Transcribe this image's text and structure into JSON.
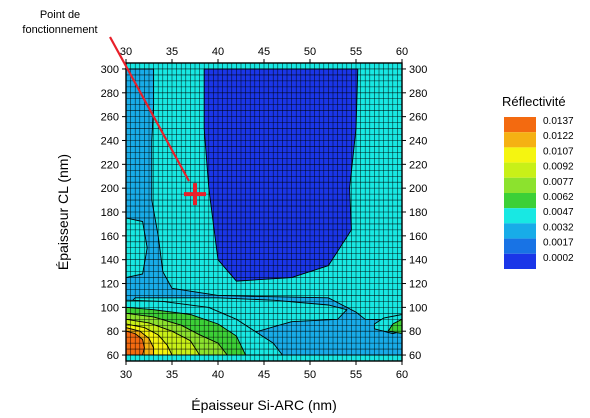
{
  "chart_data": {
    "type": "heatmap",
    "subtype": "filled-contour",
    "xlabel": "Épaisseur Si-ARC (nm)",
    "ylabel": "Épaisseur CL (nm)",
    "xlim": [
      30,
      60
    ],
    "ylim": [
      55,
      305
    ],
    "x_ticks": [
      30,
      35,
      40,
      45,
      50,
      55,
      60
    ],
    "y_ticks": [
      60,
      80,
      100,
      120,
      140,
      160,
      180,
      200,
      220,
      240,
      260,
      280,
      300
    ],
    "grid": "mesh",
    "mesh_x_step": 0.5,
    "mesh_y_step": 5,
    "legend": {
      "title": "Réflectivité",
      "position": "right",
      "levels": [
        0.0137,
        0.0122,
        0.0107,
        0.0092,
        0.0077,
        0.0062,
        0.0047,
        0.0032,
        0.0017,
        0.0002
      ],
      "colors": [
        "#f36a10",
        "#f5b113",
        "#f5f510",
        "#c8f018",
        "#8ce22e",
        "#3cd037",
        "#18e8e3",
        "#18ace8",
        "#1873e5",
        "#1a36e8"
      ]
    },
    "annotation": {
      "text_line1": "Point de",
      "text_line2": "fonctionnement",
      "marker": "+",
      "marker_color": "#e8202a",
      "x": 37.5,
      "y": 195
    },
    "regions": [
      {
        "level": 0.0002,
        "polygon": [
          [
            38.5,
            300
          ],
          [
            55.2,
            300
          ],
          [
            55,
            250
          ],
          [
            54.3,
            200
          ],
          [
            54.5,
            165
          ],
          [
            52,
            135
          ],
          [
            48,
            125
          ],
          [
            42,
            122
          ],
          [
            40,
            140
          ],
          [
            39,
            200
          ],
          [
            38.5,
            250
          ]
        ]
      },
      {
        "level": 0.0002,
        "polygon": [
          [
            47,
            67
          ],
          [
            49,
            60
          ],
          [
            55.5,
            60
          ],
          [
            56,
            66
          ],
          [
            53,
            68
          ]
        ]
      },
      {
        "level": 0.0002,
        "polygon": [
          [
            56,
            65
          ],
          [
            60,
            64
          ],
          [
            60,
            60
          ],
          [
            57,
            60
          ]
        ]
      },
      {
        "level": 0.0032,
        "polygon": [
          [
            33,
            300
          ],
          [
            33,
            270
          ],
          [
            32.8,
            240
          ],
          [
            32.8,
            190
          ],
          [
            33.5,
            160
          ],
          [
            34,
            130
          ],
          [
            35,
            116
          ],
          [
            40,
            110
          ],
          [
            45,
            109
          ],
          [
            52,
            108
          ],
          [
            55,
            96
          ],
          [
            56,
            90
          ],
          [
            60,
            89
          ],
          [
            60,
            60
          ],
          [
            38,
            60
          ],
          [
            38,
            65
          ],
          [
            40,
            70
          ],
          [
            43,
            77
          ],
          [
            48,
            88
          ],
          [
            53,
            90
          ],
          [
            54,
            98
          ],
          [
            52,
            102
          ],
          [
            46,
            106
          ],
          [
            40,
            108
          ],
          [
            34,
            108
          ],
          [
            31,
            108
          ],
          [
            30,
            100
          ],
          [
            30,
            300
          ]
        ]
      },
      {
        "level": 0.0047,
        "polygon": [
          [
            57,
            82
          ],
          [
            59,
            78
          ],
          [
            60,
            80
          ],
          [
            60,
            94
          ],
          [
            58,
            91
          ],
          [
            57,
            86
          ]
        ]
      },
      {
        "level": 0.0062,
        "polygon": [
          [
            58.5,
            80
          ],
          [
            60,
            78
          ],
          [
            60,
            90
          ],
          [
            59,
            86
          ]
        ]
      },
      {
        "level": 0.0062,
        "polygon": [
          [
            30,
            168
          ],
          [
            31.2,
            165
          ],
          [
            31.5,
            150
          ],
          [
            31,
            135
          ],
          [
            30,
            132
          ]
        ]
      },
      {
        "level": 0.0047,
        "polygon": [
          [
            30,
            175
          ],
          [
            31.8,
            172
          ],
          [
            32.3,
            150
          ],
          [
            31.8,
            128
          ],
          [
            30,
            125
          ]
        ]
      },
      {
        "level": 0.0047,
        "polygon": [
          [
            30,
            106
          ],
          [
            34,
            105
          ],
          [
            39,
            100
          ],
          [
            42,
            90
          ],
          [
            44,
            80
          ],
          [
            46,
            70
          ],
          [
            47,
            60
          ],
          [
            30,
            60
          ]
        ]
      },
      {
        "level": 0.0062,
        "polygon": [
          [
            30,
            100
          ],
          [
            33,
            98
          ],
          [
            37,
            94
          ],
          [
            40,
            86
          ],
          [
            42,
            76
          ],
          [
            43,
            60
          ],
          [
            30,
            60
          ]
        ]
      },
      {
        "level": 0.0077,
        "polygon": [
          [
            30,
            95
          ],
          [
            33,
            92
          ],
          [
            36,
            85
          ],
          [
            38,
            77
          ],
          [
            40,
            70
          ],
          [
            41,
            60
          ],
          [
            30,
            60
          ]
        ]
      },
      {
        "level": 0.0092,
        "polygon": [
          [
            30,
            90
          ],
          [
            32.5,
            87
          ],
          [
            35,
            80
          ],
          [
            37,
            72
          ],
          [
            38,
            60
          ],
          [
            30,
            60
          ]
        ]
      },
      {
        "level": 0.0107,
        "polygon": [
          [
            30,
            86
          ],
          [
            32,
            83
          ],
          [
            33.5,
            77
          ],
          [
            34.5,
            68
          ],
          [
            35,
            60
          ],
          [
            30,
            60
          ]
        ]
      },
      {
        "level": 0.0122,
        "polygon": [
          [
            30,
            83
          ],
          [
            31.5,
            80
          ],
          [
            32.5,
            74
          ],
          [
            33,
            66
          ],
          [
            33,
            60
          ],
          [
            30,
            60
          ]
        ]
      },
      {
        "level": 0.0137,
        "polygon": [
          [
            30,
            80
          ],
          [
            31,
            78
          ],
          [
            31.8,
            73
          ],
          [
            32,
            66
          ],
          [
            31.8,
            60
          ],
          [
            30,
            60
          ]
        ]
      }
    ]
  }
}
